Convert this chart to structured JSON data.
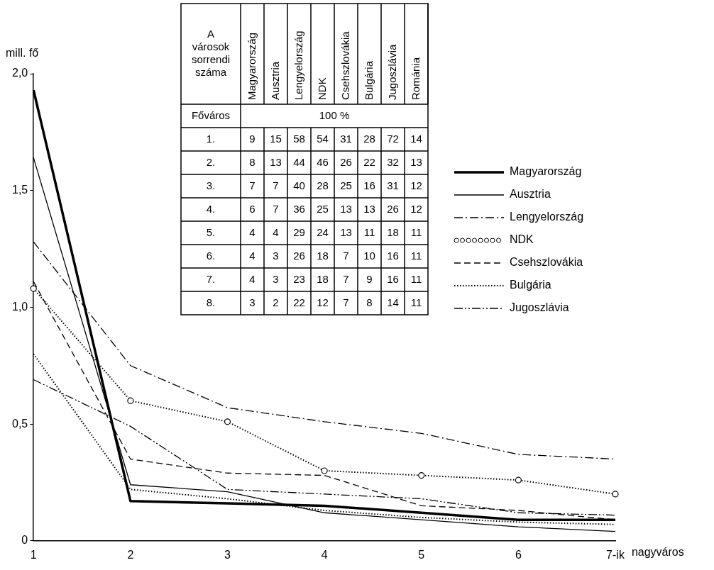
{
  "chart_data": [
    {
      "type": "line",
      "ylabel": "mill. fő",
      "xlabel": "nagyváros",
      "categories": [
        "1",
        "2",
        "3",
        "4",
        "5",
        "6",
        "7-ik"
      ],
      "ylim": [
        0,
        2
      ],
      "yticks": [
        0,
        {
          "value": 0.5,
          "label": "0,5"
        },
        {
          "value": 1,
          "label": "1,0"
        },
        {
          "value": 1.5,
          "label": "1,5"
        },
        {
          "value": 2,
          "label": "2,0"
        }
      ],
      "grid": false,
      "legend": "right",
      "series": [
        {
          "name": "Magyarország",
          "color": "#000000",
          "line_style": "solid",
          "values": [
            1.93,
            0.17,
            0.16,
            0.15,
            0.12,
            0.09,
            0.09
          ]
        },
        {
          "name": "Ausztria",
          "color": "#000000",
          "line_style": "solid",
          "values": [
            1.64,
            0.24,
            0.21,
            0.12,
            0.09,
            0.06,
            0.04
          ]
        },
        {
          "name": "Lengyelország",
          "color": "#000000",
          "line_style": "dashdot",
          "values": [
            1.28,
            0.75,
            0.57,
            0.51,
            0.46,
            0.37,
            0.35
          ]
        },
        {
          "name": "NDK",
          "color": "#000000",
          "line_style": "dotted",
          "marker": "circle",
          "values": [
            1.08,
            0.6,
            0.51,
            0.3,
            0.28,
            0.26,
            0.2
          ]
        },
        {
          "name": "Csehszlovákia",
          "color": "#000000",
          "line_style": "dashed",
          "values": [
            1.11,
            0.35,
            0.29,
            0.28,
            0.15,
            0.13,
            0.09
          ]
        },
        {
          "name": "Bulgária",
          "color": "#000000",
          "line_style": "dotted",
          "values": [
            0.8,
            0.22,
            0.18,
            0.13,
            0.1,
            0.08,
            0.07
          ]
        },
        {
          "name": "Jugoszlávia",
          "color": "#000000",
          "line_style": "dashdotdot",
          "values": [
            0.69,
            0.49,
            0.22,
            0.2,
            0.18,
            0.12,
            0.11
          ]
        }
      ]
    },
    {
      "type": "heatmap",
      "ylabel": "A városok sorrendi száma",
      "categories": [
        "Magyarország",
        "Ausztria",
        "Lengyelország",
        "NDK",
        "Csehszlovákia",
        "Bulgária",
        "Jugoszlávia",
        "Románia"
      ],
      "y_categories": [
        "Főváros",
        "1.",
        "2.",
        "3.",
        "4.",
        "5.",
        "6.",
        "7.",
        "8."
      ],
      "annotations": [
        "100 %"
      ],
      "data_labels": true,
      "cells": [
        [
          null,
          null,
          null,
          null,
          null,
          null,
          null,
          null
        ],
        [
          9,
          15,
          58,
          54,
          31,
          28,
          72,
          14
        ],
        [
          8,
          13,
          44,
          46,
          26,
          22,
          32,
          13
        ],
        [
          7,
          7,
          40,
          28,
          25,
          16,
          31,
          12
        ],
        [
          6,
          7,
          36,
          25,
          13,
          13,
          26,
          12
        ],
        [
          4,
          4,
          29,
          24,
          13,
          11,
          18,
          11
        ],
        [
          4,
          3,
          26,
          18,
          7,
          10,
          16,
          11
        ],
        [
          4,
          3,
          23,
          18,
          7,
          9,
          16,
          11
        ],
        [
          3,
          2,
          22,
          12,
          7,
          8,
          14,
          11
        ]
      ]
    }
  ]
}
